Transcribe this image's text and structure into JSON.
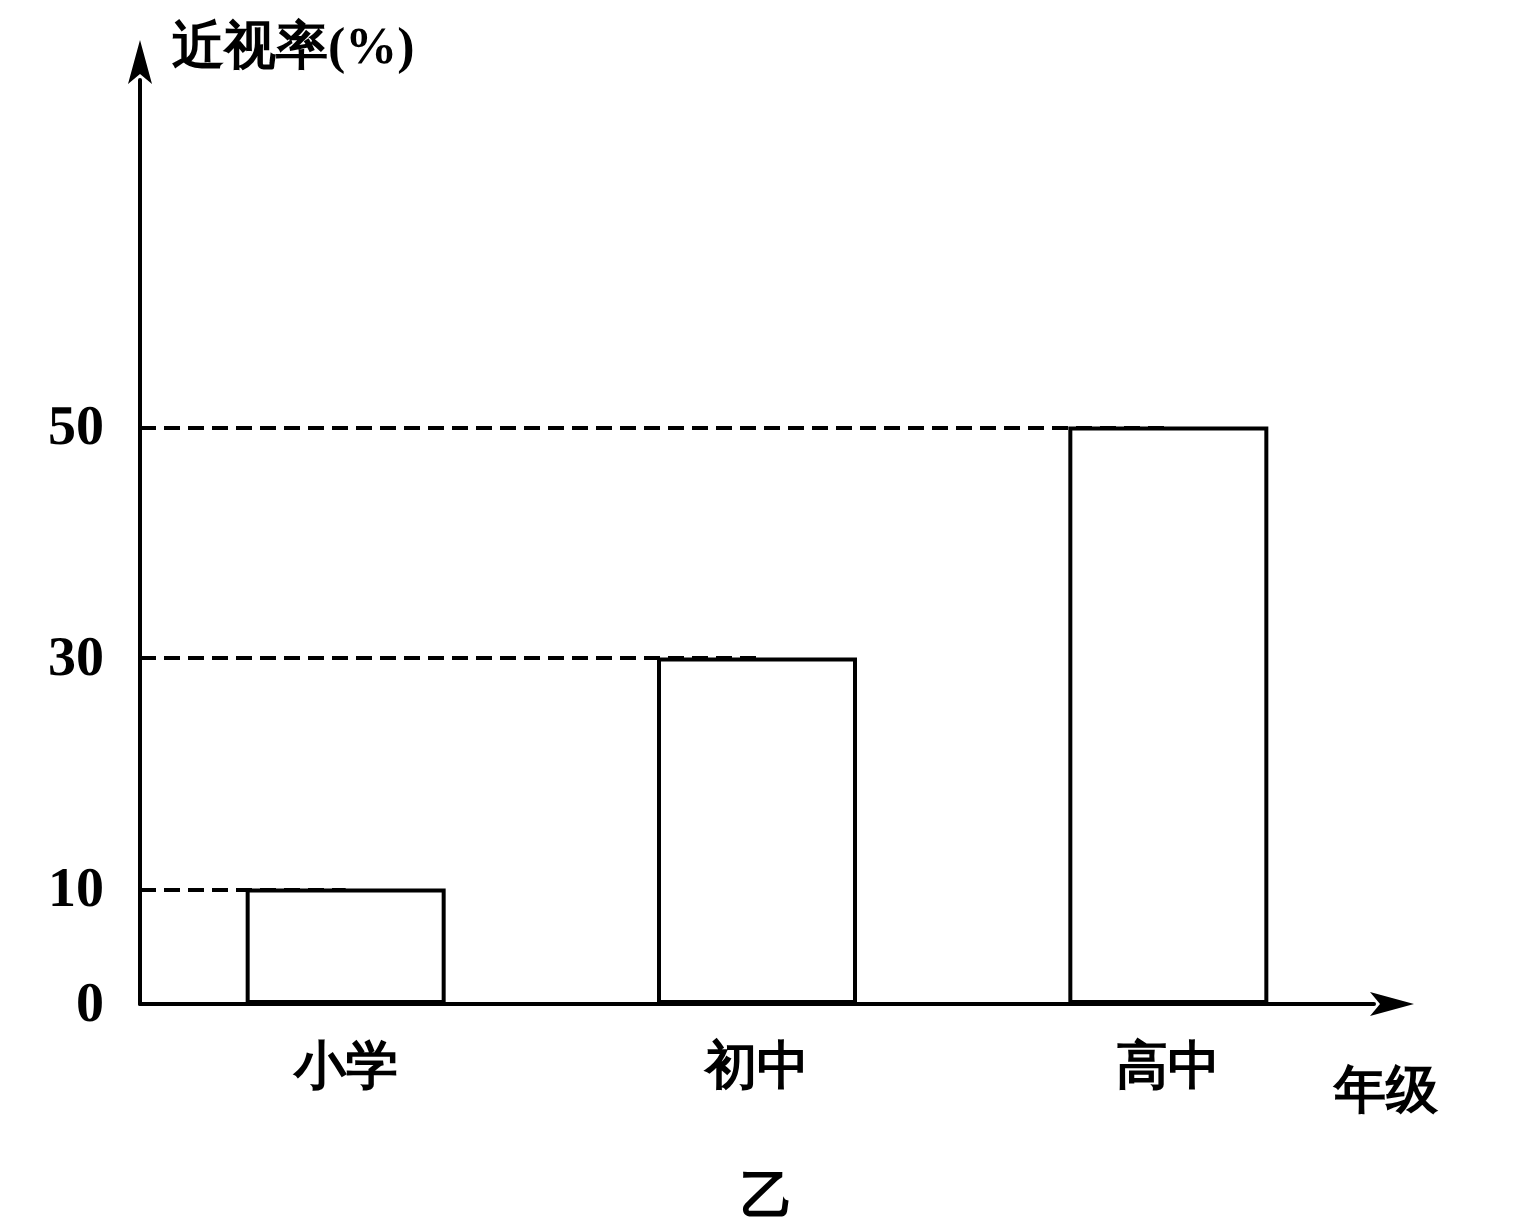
{
  "chart_data": {
    "type": "bar",
    "ylabel": "近视率(%)",
    "xlabel": "年级",
    "categories": [
      "小学",
      "初中",
      "高中"
    ],
    "values": [
      10,
      30,
      50
    ],
    "color": "#ffffff",
    "ylim": [
      0,
      80
    ],
    "yticks": [
      0,
      10,
      30,
      50
    ],
    "grid": false,
    "ref_lines": [
      {
        "axis": "y",
        "value": 10,
        "line_style": "dashed"
      },
      {
        "axis": "y",
        "value": 30,
        "line_style": "dashed"
      },
      {
        "axis": "y",
        "value": 50,
        "line_style": "dashed"
      }
    ],
    "annotations": [
      "乙"
    ]
  }
}
